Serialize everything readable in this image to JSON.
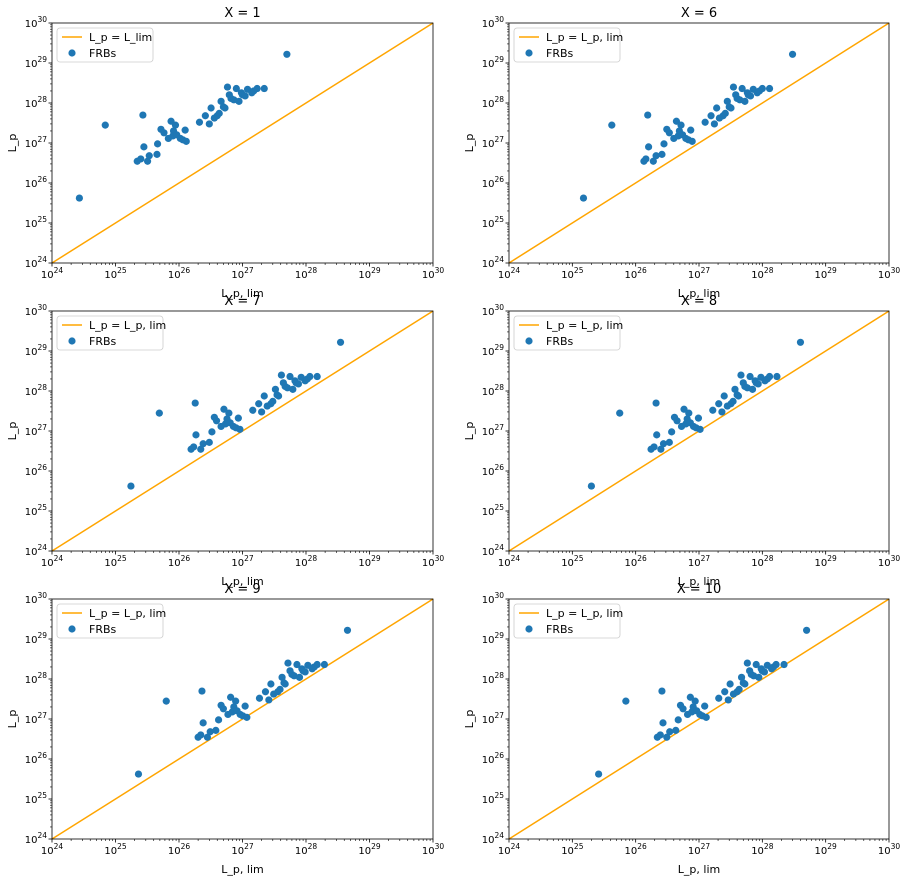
{
  "figure": {
    "background": "#ffffff",
    "line_color": "#ffa500",
    "point_color": "#1f77b4"
  },
  "chart_data": [
    {
      "type": "scatter",
      "title": "X = 1",
      "xlabel": "L_p, lim",
      "ylabel": "L_p",
      "xscale": "log",
      "yscale": "log",
      "xlim": [
        1e+24,
        1e+30
      ],
      "ylim": [
        1e+24,
        1e+30
      ],
      "xticklabels": [
        "10^24",
        "10^25",
        "10^26",
        "10^27",
        "10^28",
        "10^29",
        "10^30"
      ],
      "yticklabels": [
        "10^24",
        "10^25",
        "10^26",
        "10^27",
        "10^28",
        "10^29",
        "10^30"
      ],
      "legend": {
        "position": "top-left",
        "entries": [
          "L_p = L_lim",
          "FRBs"
        ]
      },
      "series": [
        {
          "name": "L_p = L_lim",
          "kind": "line",
          "x": [
            1e+24,
            1e+30
          ],
          "y": [
            1e+24,
            1e+30
          ]
        },
        {
          "name": "FRBs",
          "kind": "scatter",
          "x": [
            2.7e+24,
            6.9e+24,
            2.2e+25,
            2.5e+25,
            2.7e+25,
            2.8e+25,
            3.2e+25,
            3.4e+25,
            4.5e+25,
            4.6e+25,
            5.2e+25,
            5.8e+25,
            6.8e+25,
            7.5e+25,
            8e+25,
            8.2e+25,
            8.8e+25,
            9.2e+25,
            1.05e+26,
            1.15e+26,
            1.25e+26,
            1.3e+26,
            2.1e+26,
            2.6e+26,
            3e+26,
            3.2e+26,
            3.6e+26,
            4e+26,
            4.3e+26,
            4.6e+26,
            5e+26,
            5.3e+26,
            5.8e+26,
            6.2e+26,
            6.6e+26,
            7.3e+26,
            8e+26,
            8.8e+26,
            9.6e+26,
            1e+27,
            1.1e+27,
            1.2e+27,
            1.4e+27,
            1.5e+27,
            1.7e+27,
            2.2e+27,
            5e+27
          ],
          "y": [
            4.2e+25,
            2.8e+27,
            3.5e+26,
            4e+26,
            5e+27,
            8e+26,
            3.5e+26,
            4.8e+26,
            5.2e+26,
            9.5e+26,
            2.2e+27,
            1.8e+27,
            1.3e+27,
            3.5e+27,
            1.5e+27,
            2e+27,
            2.8e+27,
            1.6e+27,
            1.3e+27,
            1.2e+27,
            2.1e+27,
            1.1e+27,
            3.3e+27,
            4.8e+27,
            3e+27,
            7.5e+27,
            4.2e+27,
            4.8e+27,
            5.5e+27,
            1.1e+28,
            8e+27,
            7.5e+27,
            2.5e+28,
            1.6e+28,
            1.3e+28,
            1.2e+28,
            2.3e+28,
            1.1e+28,
            1.8e+28,
            1.6e+28,
            1.5e+28,
            2.2e+28,
            1.8e+28,
            2e+28,
            2.3e+28,
            2.3e+28,
            1.65e+29
          ]
        }
      ]
    },
    {
      "type": "scatter",
      "title": "X = 6",
      "xlabel": "L_p, lim",
      "ylabel": "L_p",
      "xscale": "log",
      "yscale": "log",
      "xlim": [
        1e+24,
        1e+30
      ],
      "ylim": [
        1e+24,
        1e+30
      ],
      "xticklabels": [
        "10^24",
        "10^25",
        "10^26",
        "10^27",
        "10^28",
        "10^29",
        "10^30"
      ],
      "yticklabels": [
        "10^24",
        "10^25",
        "10^26",
        "10^27",
        "10^28",
        "10^29",
        "10^30"
      ],
      "legend": {
        "position": "top-left",
        "entries": [
          "L_p = L_p, lim",
          "FRBs"
        ]
      },
      "series": [
        {
          "name": "L_p = L_p, lim",
          "kind": "line",
          "x": [
            1e+24,
            1e+30
          ],
          "y": [
            1e+24,
            1e+30
          ]
        },
        {
          "name": "FRBs",
          "kind": "scatter",
          "x": [
            1.5e+25,
            4.2e+25,
            1.35e+26,
            1.45e+26,
            1.55e+26,
            1.6e+26,
            1.9e+26,
            2.1e+26,
            2.6e+26,
            2.8e+26,
            3.1e+26,
            3.4e+26,
            4e+26,
            4.4e+26,
            4.7e+26,
            4.9e+26,
            5.2e+26,
            5.5e+26,
            6.2e+26,
            6.8e+26,
            7.4e+26,
            7.8e+26,
            1.25e+27,
            1.55e+27,
            1.75e+27,
            1.9e+27,
            2.1e+27,
            2.4e+27,
            2.6e+27,
            2.8e+27,
            3e+27,
            3.2e+27,
            3.5e+27,
            3.8e+27,
            4e+27,
            4.4e+27,
            4.8e+27,
            5.3e+27,
            5.8e+27,
            6e+27,
            6.5e+27,
            7.2e+27,
            8.3e+27,
            9e+27,
            1e+28,
            1.3e+28,
            3e+28
          ],
          "y": [
            4.2e+25,
            2.8e+27,
            3.5e+26,
            4e+26,
            5e+27,
            8e+26,
            3.5e+26,
            4.8e+26,
            5.2e+26,
            9.5e+26,
            2.2e+27,
            1.8e+27,
            1.3e+27,
            3.5e+27,
            1.5e+27,
            2e+27,
            2.8e+27,
            1.6e+27,
            1.3e+27,
            1.2e+27,
            2.1e+27,
            1.1e+27,
            3.3e+27,
            4.8e+27,
            3e+27,
            7.5e+27,
            4.2e+27,
            4.8e+27,
            5.5e+27,
            1.1e+28,
            8e+27,
            7.5e+27,
            2.5e+28,
            1.6e+28,
            1.3e+28,
            1.2e+28,
            2.3e+28,
            1.1e+28,
            1.8e+28,
            1.6e+28,
            1.5e+28,
            2.2e+28,
            1.8e+28,
            2e+28,
            2.3e+28,
            2.3e+28,
            1.65e+29
          ]
        }
      ]
    },
    {
      "type": "scatter",
      "title": "X = 7",
      "xlabel": "L_p, lim",
      "ylabel": "L_p",
      "xscale": "log",
      "yscale": "log",
      "xlim": [
        1e+24,
        1e+30
      ],
      "ylim": [
        1e+24,
        1e+30
      ],
      "xticklabels": [
        "10^24",
        "10^25",
        "10^26",
        "10^27",
        "10^28",
        "10^29",
        "10^30"
      ],
      "yticklabels": [
        "10^24",
        "10^25",
        "10^26",
        "10^27",
        "10^28",
        "10^29",
        "10^30"
      ],
      "legend": {
        "position": "top-left",
        "entries": [
          "L_p = L_p, lim",
          "FRBs"
        ]
      },
      "series": [
        {
          "name": "L_p = L_p, lim",
          "kind": "line",
          "x": [
            1e+24,
            1e+30
          ],
          "y": [
            1e+24,
            1e+30
          ]
        },
        {
          "name": "FRBs",
          "kind": "scatter",
          "x": [
            1.75e+25,
            4.9e+25,
            1.55e+26,
            1.7e+26,
            1.8e+26,
            1.85e+26,
            2.2e+26,
            2.4e+26,
            3e+26,
            3.3e+26,
            3.6e+26,
            3.9e+26,
            4.6e+26,
            5.1e+26,
            5.4e+26,
            5.7e+26,
            6.1e+26,
            6.4e+26,
            7.2e+26,
            7.9e+26,
            8.6e+26,
            9.1e+26,
            1.45e+27,
            1.8e+27,
            2e+27,
            2.2e+27,
            2.45e+27,
            2.8e+27,
            3e+27,
            3.3e+27,
            3.5e+27,
            3.7e+27,
            4.1e+27,
            4.4e+27,
            4.7e+27,
            5.1e+27,
            5.6e+27,
            6.2e+27,
            6.7e+27,
            7e+27,
            7.6e+27,
            8.4e+27,
            9.7e+27,
            1.05e+28,
            1.15e+28,
            1.5e+28,
            3.5e+28
          ],
          "y": [
            4.2e+25,
            2.8e+27,
            3.5e+26,
            4e+26,
            5e+27,
            8e+26,
            3.5e+26,
            4.8e+26,
            5.2e+26,
            9.5e+26,
            2.2e+27,
            1.8e+27,
            1.3e+27,
            3.5e+27,
            1.5e+27,
            2e+27,
            2.8e+27,
            1.6e+27,
            1.3e+27,
            1.2e+27,
            2.1e+27,
            1.1e+27,
            3.3e+27,
            4.8e+27,
            3e+27,
            7.5e+27,
            4.2e+27,
            4.8e+27,
            5.5e+27,
            1.1e+28,
            8e+27,
            7.5e+27,
            2.5e+28,
            1.6e+28,
            1.3e+28,
            1.2e+28,
            2.3e+28,
            1.1e+28,
            1.8e+28,
            1.6e+28,
            1.5e+28,
            2.2e+28,
            1.8e+28,
            2e+28,
            2.3e+28,
            2.3e+28,
            1.65e+29
          ]
        }
      ]
    },
    {
      "type": "scatter",
      "title": "X = 8",
      "xlabel": "L_p, lim",
      "ylabel": "L_p",
      "xscale": "log",
      "yscale": "log",
      "xlim": [
        1e+24,
        1e+30
      ],
      "ylim": [
        1e+24,
        1e+30
      ],
      "xticklabels": [
        "10^24",
        "10^25",
        "10^26",
        "10^27",
        "10^28",
        "10^29",
        "10^30"
      ],
      "yticklabels": [
        "10^24",
        "10^25",
        "10^26",
        "10^27",
        "10^28",
        "10^29",
        "10^30"
      ],
      "legend": {
        "position": "top-left",
        "entries": [
          "L_p = L_p, lim",
          "FRBs"
        ]
      },
      "series": [
        {
          "name": "L_p = L_p, lim",
          "kind": "line",
          "x": [
            1e+24,
            1e+30
          ],
          "y": [
            1e+24,
            1e+30
          ]
        },
        {
          "name": "FRBs",
          "kind": "scatter",
          "x": [
            2e+25,
            5.6e+25,
            1.75e+26,
            1.95e+26,
            2.1e+26,
            2.15e+26,
            2.5e+26,
            2.75e+26,
            3.4e+26,
            3.7e+26,
            4.1e+26,
            4.5e+26,
            5.3e+26,
            5.8e+26,
            6.2e+26,
            6.5e+26,
            6.9e+26,
            7.3e+26,
            8.2e+26,
            9e+26,
            9.8e+26,
            1.04e+27,
            1.65e+27,
            2.05e+27,
            2.3e+27,
            2.5e+27,
            2.8e+27,
            3.2e+27,
            3.45e+27,
            3.7e+27,
            4e+27,
            4.2e+27,
            4.6e+27,
            5e+27,
            5.3e+27,
            5.8e+27,
            6.4e+27,
            7e+27,
            7.7e+27,
            8e+27,
            8.6e+27,
            9.5e+27,
            1.1e+28,
            1.2e+28,
            1.3e+28,
            1.7e+28,
            4e+28
          ],
          "y": [
            4.2e+25,
            2.8e+27,
            3.5e+26,
            4e+26,
            5e+27,
            8e+26,
            3.5e+26,
            4.8e+26,
            5.2e+26,
            9.5e+26,
            2.2e+27,
            1.8e+27,
            1.3e+27,
            3.5e+27,
            1.5e+27,
            2e+27,
            2.8e+27,
            1.6e+27,
            1.3e+27,
            1.2e+27,
            2.1e+27,
            1.1e+27,
            3.3e+27,
            4.8e+27,
            3e+27,
            7.5e+27,
            4.2e+27,
            4.8e+27,
            5.5e+27,
            1.1e+28,
            8e+27,
            7.5e+27,
            2.5e+28,
            1.6e+28,
            1.3e+28,
            1.2e+28,
            2.3e+28,
            1.1e+28,
            1.8e+28,
            1.6e+28,
            1.5e+28,
            2.2e+28,
            1.8e+28,
            2e+28,
            2.3e+28,
            2.3e+28,
            1.65e+29
          ]
        }
      ]
    },
    {
      "type": "scatter",
      "title": "X = 9",
      "xlabel": "L_p, lim",
      "ylabel": "L_p",
      "xscale": "log",
      "yscale": "log",
      "xlim": [
        1e+24,
        1e+30
      ],
      "ylim": [
        1e+24,
        1e+30
      ],
      "xticklabels": [
        "10^24",
        "10^25",
        "10^26",
        "10^27",
        "10^28",
        "10^29",
        "10^30"
      ],
      "yticklabels": [
        "10^24",
        "10^25",
        "10^26",
        "10^27",
        "10^28",
        "10^29",
        "10^30"
      ],
      "legend": {
        "position": "top-left",
        "entries": [
          "L_p = L_p, lim",
          "FRBs"
        ]
      },
      "series": [
        {
          "name": "L_p = L_p, lim",
          "kind": "line",
          "x": [
            1e+24,
            1e+30
          ],
          "y": [
            1e+24,
            1e+30
          ]
        },
        {
          "name": "FRBs",
          "kind": "scatter",
          "x": [
            2.3e+25,
            6.3e+25,
            2e+26,
            2.2e+26,
            2.3e+26,
            2.4e+26,
            2.8e+26,
            3.1e+26,
            3.8e+26,
            4.2e+26,
            4.6e+26,
            5e+26,
            5.9e+26,
            6.5e+26,
            6.9e+26,
            7.3e+26,
            7.8e+26,
            8.2e+26,
            9.2e+26,
            1.01e+27,
            1.1e+27,
            1.17e+27,
            1.85e+27,
            2.3e+27,
            2.6e+27,
            2.8e+27,
            3.1e+27,
            3.6e+27,
            3.9e+27,
            4.2e+27,
            4.5e+27,
            4.7e+27,
            5.2e+27,
            5.6e+27,
            6e+27,
            6.5e+27,
            7.2e+27,
            7.9e+27,
            8.6e+27,
            9e+27,
            9.7e+27,
            1.07e+28,
            1.25e+28,
            1.35e+28,
            1.5e+28,
            1.95e+28,
            4.5e+28
          ],
          "y": [
            4.2e+25,
            2.8e+27,
            3.5e+26,
            4e+26,
            5e+27,
            8e+26,
            3.5e+26,
            4.8e+26,
            5.2e+26,
            9.5e+26,
            2.2e+27,
            1.8e+27,
            1.3e+27,
            3.5e+27,
            1.5e+27,
            2e+27,
            2.8e+27,
            1.6e+27,
            1.3e+27,
            1.2e+27,
            2.1e+27,
            1.1e+27,
            3.3e+27,
            4.8e+27,
            3e+27,
            7.5e+27,
            4.2e+27,
            4.8e+27,
            5.5e+27,
            1.1e+28,
            8e+27,
            7.5e+27,
            2.5e+28,
            1.6e+28,
            1.3e+28,
            1.2e+28,
            2.3e+28,
            1.1e+28,
            1.8e+28,
            1.6e+28,
            1.5e+28,
            2.2e+28,
            1.8e+28,
            2e+28,
            2.3e+28,
            2.3e+28,
            1.65e+29
          ]
        }
      ]
    },
    {
      "type": "scatter",
      "title": "X = 10",
      "xlabel": "L_p, lim",
      "ylabel": "L_p",
      "xscale": "log",
      "yscale": "log",
      "xlim": [
        1e+24,
        1e+30
      ],
      "ylim": [
        1e+24,
        1e+30
      ],
      "xticklabels": [
        "10^24",
        "10^25",
        "10^26",
        "10^27",
        "10^28",
        "10^29",
        "10^30"
      ],
      "yticklabels": [
        "10^24",
        "10^25",
        "10^26",
        "10^27",
        "10^28",
        "10^29",
        "10^30"
      ],
      "legend": {
        "position": "top-left",
        "entries": [
          "L_p = L_p, lim",
          "FRBs"
        ]
      },
      "series": [
        {
          "name": "L_p = L_p, lim",
          "kind": "line",
          "x": [
            1e+24,
            1e+30
          ],
          "y": [
            1e+24,
            1e+30
          ]
        },
        {
          "name": "FRBs",
          "kind": "scatter",
          "x": [
            2.6e+25,
            7e+25,
            2.2e+26,
            2.45e+26,
            2.6e+26,
            2.7e+26,
            3.1e+26,
            3.45e+26,
            4.3e+26,
            4.7e+26,
            5.1e+26,
            5.6e+26,
            6.6e+26,
            7.3e+26,
            7.7e+26,
            8.1e+26,
            8.7e+26,
            9.2e+26,
            1.03e+27,
            1.13e+27,
            1.23e+27,
            1.3e+27,
            2.05e+27,
            2.55e+27,
            2.9e+27,
            3.1e+27,
            3.5e+27,
            4e+27,
            4.3e+27,
            4.7e+27,
            5e+27,
            5.3e+27,
            5.8e+27,
            6.3e+27,
            6.7e+27,
            7.3e+27,
            8e+27,
            8.8e+27,
            9.6e+27,
            1e+28,
            1.08e+28,
            1.2e+28,
            1.4e+28,
            1.5e+28,
            1.65e+28,
            2.2e+28,
            5e+28
          ],
          "y": [
            4.2e+25,
            2.8e+27,
            3.5e+26,
            4e+26,
            5e+27,
            8e+26,
            3.5e+26,
            4.8e+26,
            5.2e+26,
            9.5e+26,
            2.2e+27,
            1.8e+27,
            1.3e+27,
            3.5e+27,
            1.5e+27,
            2e+27,
            2.8e+27,
            1.6e+27,
            1.3e+27,
            1.2e+27,
            2.1e+27,
            1.1e+27,
            3.3e+27,
            4.8e+27,
            3e+27,
            7.5e+27,
            4.2e+27,
            4.8e+27,
            5.5e+27,
            1.1e+28,
            8e+27,
            7.5e+27,
            2.5e+28,
            1.6e+28,
            1.3e+28,
            1.2e+28,
            2.3e+28,
            1.1e+28,
            1.8e+28,
            1.6e+28,
            1.5e+28,
            2.2e+28,
            1.8e+28,
            2e+28,
            2.3e+28,
            2.3e+28,
            1.65e+29
          ]
        }
      ]
    }
  ]
}
